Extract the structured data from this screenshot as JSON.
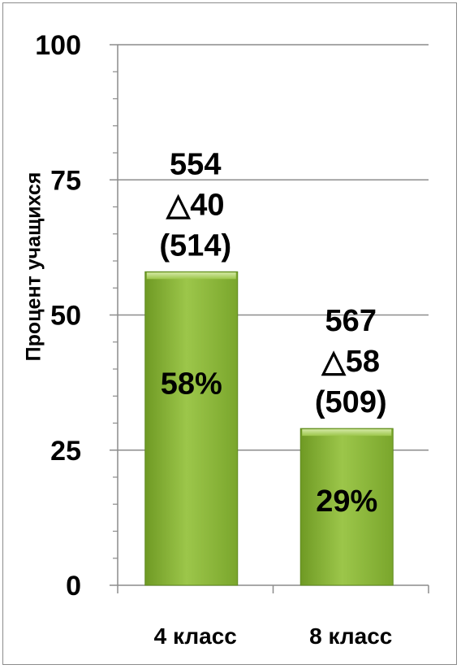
{
  "chart_data": {
    "type": "bar",
    "ylabel": "Процент учащихся",
    "ylim": [
      0,
      100
    ],
    "yticks": [
      0,
      25,
      50,
      75,
      100
    ],
    "grid": true,
    "categories": [
      "4 класс",
      "8 класс"
    ],
    "values": [
      58,
      29
    ],
    "value_labels": [
      "58%",
      "29%"
    ],
    "annotations": [
      [
        "554",
        "△40",
        "(514)"
      ],
      [
        "567",
        "△58",
        "(509)"
      ]
    ],
    "bar_color": "#8cba38"
  }
}
